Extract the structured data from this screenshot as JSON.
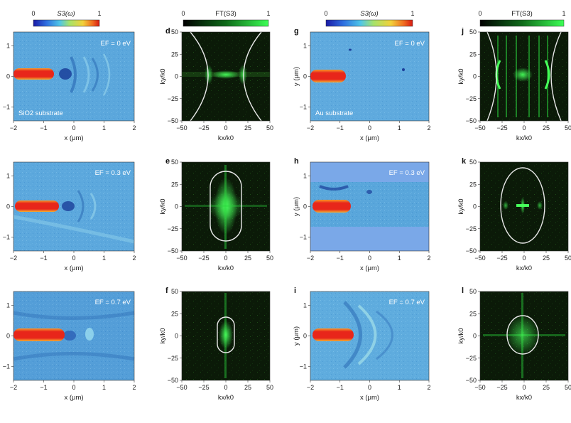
{
  "colorbars": [
    {
      "label": "S3(ω)",
      "min": "0",
      "max": "1",
      "kind": "jet"
    },
    {
      "label": "FT(S3)",
      "min": "0",
      "max": "1",
      "kind": "green"
    },
    {
      "label": "S3(ω)",
      "min": "0",
      "max": "1",
      "kind": "jet"
    },
    {
      "label": "FT(S3)",
      "min": "0",
      "max": "1",
      "kind": "green"
    }
  ],
  "axes": {
    "x_um": {
      "label": "x (μm)",
      "ticks": [
        "−2",
        "−1",
        "0",
        "1",
        "2"
      ]
    },
    "y_um": {
      "label": "y (μm)",
      "ticks": [
        "1",
        "0",
        "−1"
      ]
    },
    "kx": {
      "label": "kx/k0",
      "ticks": [
        "−50",
        "−25",
        "0",
        "25",
        "50"
      ]
    },
    "ky": {
      "label": "ky/k0",
      "ticks": [
        "50",
        "25",
        "0",
        "−25",
        "−50"
      ]
    }
  },
  "panels": {
    "a": {
      "label": "",
      "annotation": "EF = 0 eV",
      "substrate": "SiO2 substrate",
      "ylabel": ""
    },
    "b": {
      "label": "",
      "annotation": "EF = 0.3 eV",
      "ylabel": ""
    },
    "c": {
      "label": "",
      "annotation": "EF = 0.7 eV",
      "ylabel": ""
    },
    "d": {
      "label": "d"
    },
    "e": {
      "label": "e"
    },
    "f": {
      "label": "f"
    },
    "g": {
      "label": "g",
      "annotation": "EF = 0 eV",
      "substrate": "Au substrate",
      "ylabel": "y (μm)"
    },
    "h": {
      "label": "h",
      "annotation": "EF = 0.3 eV",
      "ylabel": "y (μm)"
    },
    "i": {
      "label": "i",
      "annotation": "EF = 0.7 eV",
      "ylabel": "y (μm)"
    },
    "j": {
      "label": "j"
    },
    "k": {
      "label": "k"
    },
    "l": {
      "label": "l"
    }
  },
  "colors": {
    "field_bg": "#5aa7dc",
    "tip": "#e8261a",
    "ft_bg": "#0b1a08",
    "ft_green": "#39e64a",
    "contour": "#e8e8e8"
  }
}
